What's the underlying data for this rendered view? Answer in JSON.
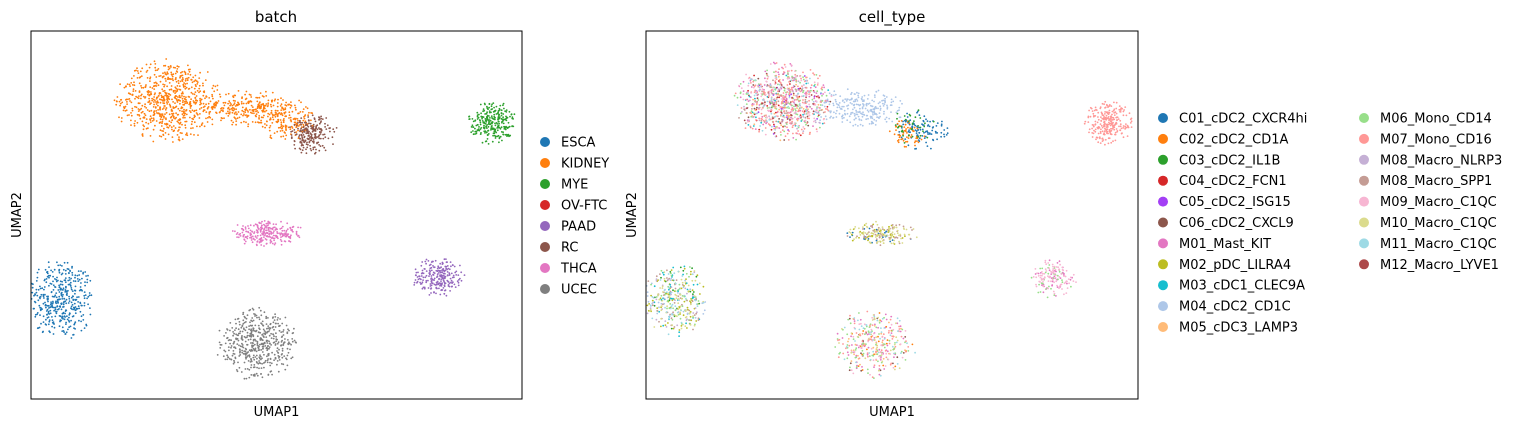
{
  "chart_data": [
    {
      "type": "scatter",
      "title": "batch",
      "xlabel": "UMAP1",
      "ylabel": "UMAP2",
      "legend_position": "right",
      "grid": false,
      "ticks": false,
      "series": [
        {
          "name": "ESCA",
          "color": "#1f77b4",
          "clusters": [
            {
              "cx": 0.6,
              "cy": 2.7,
              "rx": 0.7,
              "ry": 1.1,
              "n": 420
            }
          ]
        },
        {
          "name": "KIDNEY",
          "color": "#ff7f0e",
          "clusters": [
            {
              "cx": 2.8,
              "cy": 8.1,
              "rx": 1.1,
              "ry": 1.15,
              "n": 700
            },
            {
              "cx": 4.4,
              "cy": 7.9,
              "rx": 1.0,
              "ry": 0.5,
              "n": 260
            },
            {
              "cx": 5.2,
              "cy": 7.6,
              "rx": 0.6,
              "ry": 0.6,
              "n": 160
            }
          ]
        },
        {
          "name": "MYE",
          "color": "#2ca02c",
          "clusters": [
            {
              "cx": 9.4,
              "cy": 7.5,
              "rx": 0.5,
              "ry": 0.6,
              "n": 280
            }
          ]
        },
        {
          "name": "OV-FTC",
          "color": "#d62728",
          "clusters": []
        },
        {
          "name": "PAAD",
          "color": "#9467bd",
          "clusters": [
            {
              "cx": 8.3,
              "cy": 3.3,
              "rx": 0.55,
              "ry": 0.55,
              "n": 240
            }
          ]
        },
        {
          "name": "RC",
          "color": "#8c564b",
          "clusters": [
            {
              "cx": 5.7,
              "cy": 7.2,
              "rx": 0.55,
              "ry": 0.55,
              "n": 220
            }
          ]
        },
        {
          "name": "THCA",
          "color": "#e377c2",
          "clusters": [
            {
              "cx": 4.8,
              "cy": 4.5,
              "rx": 0.8,
              "ry": 0.35,
              "n": 260
            }
          ]
        },
        {
          "name": "UCEC",
          "color": "#7f7f7f",
          "clusters": [
            {
              "cx": 4.6,
              "cy": 1.5,
              "rx": 0.85,
              "ry": 1.0,
              "n": 500
            }
          ]
        }
      ]
    },
    {
      "type": "scatter",
      "title": "cell_type",
      "xlabel": "UMAP1",
      "ylabel": "UMAP2",
      "legend_position": "right",
      "legend_columns": 2,
      "grid": false,
      "ticks": false,
      "series": [
        {
          "name": "C01_cDC2_CXCR4hi",
          "color": "#1f77b4",
          "clusters": [
            {
              "cx": 5.6,
              "cy": 7.3,
              "rx": 0.55,
              "ry": 0.55,
              "n": 110
            },
            {
              "cx": 4.7,
              "cy": 4.4,
              "rx": 0.7,
              "ry": 0.3,
              "n": 25
            }
          ]
        },
        {
          "name": "C02_cDC2_CD1A",
          "color": "#ff7f0e",
          "clusters": [
            {
              "cx": 5.3,
              "cy": 7.2,
              "rx": 0.4,
              "ry": 0.4,
              "n": 60
            },
            {
              "cx": 4.8,
              "cy": 1.5,
              "rx": 0.8,
              "ry": 0.9,
              "n": 25
            }
          ]
        },
        {
          "name": "C03_cDC2_IL1B",
          "color": "#2ca02c",
          "clusters": [
            {
              "cx": 5.4,
              "cy": 7.4,
              "rx": 0.5,
              "ry": 0.5,
              "n": 35
            },
            {
              "cx": 0.6,
              "cy": 2.8,
              "rx": 0.6,
              "ry": 1.0,
              "n": 25
            }
          ]
        },
        {
          "name": "C04_cDC2_FCN1",
          "color": "#d62728",
          "clusters": [
            {
              "cx": 2.8,
              "cy": 8.0,
              "rx": 1.0,
              "ry": 1.0,
              "n": 40
            }
          ]
        },
        {
          "name": "C05_cDC2_ISG15",
          "color": "#a33ff5",
          "clusters": [
            {
              "cx": 2.8,
              "cy": 8.0,
              "rx": 1.0,
              "ry": 1.0,
              "n": 30
            }
          ]
        },
        {
          "name": "C06_cDC2_CXCL9",
          "color": "#8c564b",
          "clusters": [
            {
              "cx": 2.8,
              "cy": 8.0,
              "rx": 1.0,
              "ry": 1.0,
              "n": 30
            },
            {
              "cx": 4.6,
              "cy": 1.5,
              "rx": 0.8,
              "ry": 0.9,
              "n": 15
            }
          ]
        },
        {
          "name": "M01_Mast_KIT",
          "color": "#e377c2",
          "clusters": [
            {
              "cx": 2.8,
              "cy": 8.1,
              "rx": 1.05,
              "ry": 1.1,
              "n": 120
            },
            {
              "cx": 4.6,
              "cy": 1.5,
              "rx": 0.8,
              "ry": 0.95,
              "n": 60
            },
            {
              "cx": 8.3,
              "cy": 3.3,
              "rx": 0.5,
              "ry": 0.5,
              "n": 40
            }
          ]
        },
        {
          "name": "M02_pDC_LILRA4",
          "color": "#bcbd22",
          "clusters": [
            {
              "cx": 0.6,
              "cy": 2.7,
              "rx": 0.65,
              "ry": 1.0,
              "n": 70
            },
            {
              "cx": 4.8,
              "cy": 4.5,
              "rx": 0.75,
              "ry": 0.33,
              "n": 40
            }
          ]
        },
        {
          "name": "M03_cDC1_CLEC9A",
          "color": "#17becf",
          "clusters": [
            {
              "cx": 0.6,
              "cy": 2.7,
              "rx": 0.65,
              "ry": 1.0,
              "n": 40
            },
            {
              "cx": 2.8,
              "cy": 8.0,
              "rx": 1.0,
              "ry": 1.0,
              "n": 25
            }
          ]
        },
        {
          "name": "M04_cDC2_CD1C",
          "color": "#aec7e8",
          "clusters": [
            {
              "cx": 4.3,
              "cy": 7.9,
              "rx": 1.0,
              "ry": 0.55,
              "n": 260
            },
            {
              "cx": 0.6,
              "cy": 2.7,
              "rx": 0.65,
              "ry": 1.0,
              "n": 40
            }
          ]
        },
        {
          "name": "M05_cDC3_LAMP3",
          "color": "#ffbb78",
          "clusters": [
            {
              "cx": 2.8,
              "cy": 8.0,
              "rx": 1.0,
              "ry": 1.0,
              "n": 50
            },
            {
              "cx": 4.6,
              "cy": 1.5,
              "rx": 0.8,
              "ry": 0.9,
              "n": 30
            }
          ]
        },
        {
          "name": "M06_Mono_CD14",
          "color": "#98df8a",
          "clusters": [
            {
              "cx": 2.8,
              "cy": 8.1,
              "rx": 1.05,
              "ry": 1.1,
              "n": 120
            },
            {
              "cx": 4.6,
              "cy": 1.5,
              "rx": 0.8,
              "ry": 0.95,
              "n": 70
            },
            {
              "cx": 0.6,
              "cy": 2.7,
              "rx": 0.65,
              "ry": 1.0,
              "n": 40
            },
            {
              "cx": 8.2,
              "cy": 3.2,
              "rx": 0.5,
              "ry": 0.5,
              "n": 30
            }
          ]
        },
        {
          "name": "M07_Mono_CD16",
          "color": "#ff9896",
          "clusters": [
            {
              "cx": 2.8,
              "cy": 8.1,
              "rx": 1.05,
              "ry": 1.1,
              "n": 220
            },
            {
              "cx": 9.4,
              "cy": 7.5,
              "rx": 0.5,
              "ry": 0.6,
              "n": 260
            },
            {
              "cx": 4.6,
              "cy": 1.5,
              "rx": 0.8,
              "ry": 0.95,
              "n": 60
            }
          ]
        },
        {
          "name": "M08_Macro_NLRP3",
          "color": "#c5b0d5",
          "clusters": [
            {
              "cx": 2.8,
              "cy": 8.0,
              "rx": 1.0,
              "ry": 1.0,
              "n": 50
            },
            {
              "cx": 0.6,
              "cy": 2.7,
              "rx": 0.65,
              "ry": 1.0,
              "n": 30
            }
          ]
        },
        {
          "name": "M08_Macro_SPP1",
          "color": "#c49c94",
          "clusters": [
            {
              "cx": 2.8,
              "cy": 8.0,
              "rx": 1.0,
              "ry": 1.0,
              "n": 50
            },
            {
              "cx": 0.6,
              "cy": 2.7,
              "rx": 0.65,
              "ry": 1.0,
              "n": 40
            },
            {
              "cx": 4.8,
              "cy": 4.5,
              "rx": 0.75,
              "ry": 0.33,
              "n": 50
            }
          ]
        },
        {
          "name": "M09_Macro_C1QC",
          "color": "#f7b6d2",
          "clusters": [
            {
              "cx": 2.8,
              "cy": 8.1,
              "rx": 1.05,
              "ry": 1.1,
              "n": 90
            },
            {
              "cx": 8.3,
              "cy": 3.3,
              "rx": 0.5,
              "ry": 0.5,
              "n": 90
            },
            {
              "cx": 4.6,
              "cy": 1.5,
              "rx": 0.8,
              "ry": 0.95,
              "n": 40
            }
          ]
        },
        {
          "name": "M10_Macro_C1QC",
          "color": "#dbdb8d",
          "clusters": [
            {
              "cx": 4.8,
              "cy": 4.5,
              "rx": 0.75,
              "ry": 0.33,
              "n": 80
            },
            {
              "cx": 0.6,
              "cy": 2.7,
              "rx": 0.65,
              "ry": 1.0,
              "n": 60
            },
            {
              "cx": 4.6,
              "cy": 1.5,
              "rx": 0.8,
              "ry": 0.95,
              "n": 30
            }
          ]
        },
        {
          "name": "M11_Macro_C1QC",
          "color": "#9edae5",
          "clusters": [
            {
              "cx": 2.8,
              "cy": 8.0,
              "rx": 1.0,
              "ry": 1.0,
              "n": 50
            },
            {
              "cx": 4.7,
              "cy": 1.5,
              "rx": 0.8,
              "ry": 0.9,
              "n": 40
            },
            {
              "cx": 0.6,
              "cy": 2.7,
              "rx": 0.65,
              "ry": 1.0,
              "n": 30
            }
          ]
        },
        {
          "name": "M12_Macro_LYVE1",
          "color": "#ad494a",
          "clusters": [
            {
              "cx": 2.8,
              "cy": 8.0,
              "rx": 1.0,
              "ry": 1.0,
              "n": 25
            }
          ]
        }
      ]
    }
  ]
}
